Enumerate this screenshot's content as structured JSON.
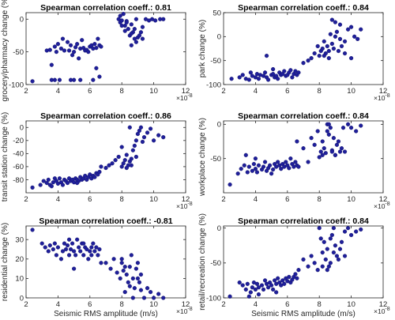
{
  "chart_data": [
    {
      "type": "scatter",
      "title": "Spearman correlation coeff.: 0.81",
      "ylabel": "grocery/pharmacy change (%)",
      "xlabel": "",
      "xlim": [
        2,
        12
      ],
      "ylim": [
        -100,
        10
      ],
      "xticks": [
        "2",
        "4",
        "6",
        "8",
        "10",
        "12"
      ],
      "yticks": [
        "-100",
        "-50",
        "0"
      ],
      "ytick_values": [
        -100,
        -50,
        0
      ],
      "x_multiplier": "×10",
      "x_multiplier_exp": "-8",
      "marker_color": "#1f1f9a",
      "x": [
        2.4,
        3.3,
        3.5,
        3.6,
        3.8,
        3.9,
        4.0,
        4.2,
        4.3,
        4.4,
        4.6,
        4.7,
        4.8,
        4.9,
        5.0,
        5.1,
        5.2,
        5.3,
        5.4,
        5.5,
        5.6,
        5.7,
        5.8,
        5.9,
        6.0,
        6.1,
        6.2,
        6.3,
        6.4,
        6.5,
        6.6,
        6.7,
        3.6,
        3.8,
        4.1,
        4.8,
        5.0,
        5.4,
        6.2,
        6.4,
        6.6,
        7.8,
        7.9,
        8.0,
        8.1,
        8.2,
        8.3,
        8.4,
        8.5,
        8.6,
        8.7,
        8.8,
        8.9,
        9.0,
        9.2,
        9.3,
        9.5,
        9.7,
        9.9,
        10.1,
        10.4,
        10.6,
        8.0,
        8.3,
        8.6,
        8.8,
        9.1,
        9.3,
        8.9,
        8.6,
        7.9,
        8.2
      ],
      "y": [
        -95,
        -48,
        -47,
        -70,
        -42,
        -50,
        -38,
        -45,
        -30,
        -48,
        -35,
        -48,
        -40,
        -55,
        -50,
        -43,
        -38,
        -60,
        -45,
        -32,
        -44,
        -48,
        -47,
        -50,
        -42,
        -40,
        -45,
        -38,
        -44,
        -30,
        -40,
        -42,
        -93,
        -93,
        -93,
        -93,
        -93,
        -93,
        -93,
        -75,
        -88,
        0,
        -5,
        -2,
        8,
        -10,
        -3,
        -15,
        -25,
        -8,
        -20,
        -30,
        0,
        -28,
        -20,
        -30,
        0,
        -2,
        0,
        -2,
        0,
        0,
        -10,
        -5,
        -22,
        -15,
        -25,
        -12,
        -35,
        -40,
        5,
        -18
      ]
    },
    {
      "type": "scatter",
      "title": "Spearman correlation coeff.: 0.84",
      "ylabel": "park change (%)",
      "xlabel": "",
      "xlim": [
        2,
        12
      ],
      "ylim": [
        -100,
        50
      ],
      "xticks": [
        "2",
        "4",
        "6",
        "8",
        "10",
        "12"
      ],
      "yticks": [
        "-100",
        "-50",
        "0",
        "50"
      ],
      "ytick_values": [
        -100,
        -50,
        0,
        50
      ],
      "x_multiplier": "×10",
      "x_multiplier_exp": "-8",
      "marker_color": "#1f1f9a",
      "x": [
        2.5,
        3.0,
        3.2,
        3.4,
        3.6,
        3.7,
        3.8,
        4.0,
        4.1,
        4.2,
        4.3,
        4.5,
        4.6,
        4.7,
        4.8,
        5.0,
        5.1,
        5.2,
        5.3,
        5.4,
        5.5,
        5.6,
        5.7,
        5.8,
        5.9,
        6.0,
        6.1,
        6.2,
        6.3,
        6.4,
        6.5,
        6.6,
        6.7,
        4.7,
        5.1,
        7.0,
        7.3,
        7.5,
        7.7,
        7.9,
        8.0,
        8.1,
        8.2,
        8.3,
        8.4,
        8.5,
        8.6,
        8.7,
        8.8,
        8.9,
        9.0,
        9.2,
        9.3,
        9.4,
        9.6,
        9.8,
        10.0,
        10.2,
        10.4,
        10.6,
        8.8,
        9.0,
        9.1,
        9.6,
        10.0,
        8.6,
        8.3,
        9.3
      ],
      "y": [
        -88,
        -85,
        -80,
        -88,
        -90,
        -75,
        -82,
        -85,
        -78,
        -88,
        -80,
        -82,
        -75,
        -85,
        -90,
        -80,
        -78,
        -85,
        -82,
        -88,
        -75,
        -80,
        -78,
        -72,
        -82,
        -80,
        -75,
        -70,
        -85,
        -78,
        -72,
        -80,
        -75,
        -40,
        -68,
        -55,
        -50,
        -45,
        -35,
        -20,
        -40,
        -30,
        -25,
        -10,
        -35,
        -20,
        -30,
        5,
        -15,
        -25,
        0,
        -30,
        -5,
        -20,
        -10,
        15,
        20,
        0,
        -5,
        15,
        35,
        30,
        10,
        -35,
        -45,
        -45,
        -40,
        25
      ]
    },
    {
      "type": "scatter",
      "title": "Spearman correlation coeff.: 0.86",
      "ylabel": "transit station change (%)",
      "xlabel": "",
      "xlim": [
        2,
        12
      ],
      "ylim": [
        -100,
        10
      ],
      "xticks": [
        "2",
        "4",
        "6",
        "8",
        "10",
        "12"
      ],
      "yticks": [
        "-80",
        "-60",
        "-40",
        "-20",
        "0"
      ],
      "ytick_values": [
        -80,
        -60,
        -40,
        -20,
        0
      ],
      "x_multiplier": "×10",
      "x_multiplier_exp": "-8",
      "marker_color": "#1f1f9a",
      "x": [
        2.4,
        2.9,
        3.1,
        3.3,
        3.4,
        3.5,
        3.7,
        3.8,
        3.9,
        4.0,
        4.1,
        4.2,
        4.4,
        4.5,
        4.6,
        4.7,
        4.8,
        4.9,
        5.0,
        5.1,
        5.2,
        5.3,
        5.4,
        5.5,
        5.6,
        5.7,
        5.8,
        5.9,
        6.0,
        6.1,
        6.2,
        6.3,
        6.4,
        6.5,
        6.6,
        6.7,
        3.6,
        4.3,
        5.2,
        7.0,
        7.2,
        7.4,
        7.6,
        7.8,
        8.0,
        8.1,
        8.2,
        8.3,
        8.4,
        8.5,
        8.6,
        8.7,
        8.8,
        8.9,
        9.0,
        9.1,
        9.2,
        9.4,
        9.6,
        9.8,
        10.0,
        10.3,
        10.6,
        8.3,
        8.6,
        8.9,
        8.0,
        8.5,
        9.3
      ],
      "y": [
        -92,
        -88,
        -82,
        -85,
        -80,
        -88,
        -84,
        -78,
        -82,
        -86,
        -78,
        -84,
        -80,
        -82,
        -85,
        -78,
        -82,
        -80,
        -84,
        -78,
        -80,
        -82,
        -76,
        -80,
        -78,
        -74,
        -80,
        -76,
        -72,
        -78,
        -74,
        -76,
        -70,
        -72,
        -68,
        -60,
        -90,
        -88,
        -85,
        -62,
        -58,
        -55,
        -50,
        -45,
        -60,
        -55,
        -50,
        -42,
        -58,
        -52,
        -48,
        -35,
        -28,
        -20,
        -10,
        -5,
        0,
        -15,
        -8,
        -2,
        -20,
        -12,
        -15,
        -62,
        -58,
        -45,
        -30,
        0,
        -22
      ]
    },
    {
      "type": "scatter",
      "title": "Spearman correlation coeff.: 0.84",
      "ylabel": "workplace change (%)",
      "xlabel": "",
      "xlim": [
        2,
        12
      ],
      "ylim": [
        -100,
        5
      ],
      "xticks": [
        "2",
        "4",
        "6",
        "8",
        "10",
        "12"
      ],
      "yticks": [
        "-50",
        "0"
      ],
      "ytick_values": [
        -50,
        0
      ],
      "x_multiplier": "×10",
      "x_multiplier_exp": "-8",
      "marker_color": "#1f1f9a",
      "x": [
        2.4,
        2.9,
        3.1,
        3.3,
        3.5,
        3.6,
        3.8,
        3.9,
        4.0,
        4.1,
        4.2,
        4.4,
        4.5,
        4.6,
        4.7,
        4.8,
        4.9,
        5.0,
        5.1,
        5.2,
        5.3,
        5.4,
        5.5,
        5.6,
        5.7,
        5.8,
        5.9,
        6.0,
        6.1,
        6.2,
        6.3,
        6.4,
        6.5,
        6.6,
        6.7,
        3.4,
        4.0,
        6.6,
        7.0,
        7.3,
        7.5,
        7.7,
        7.9,
        8.0,
        8.1,
        8.2,
        8.3,
        8.4,
        8.5,
        8.6,
        8.7,
        8.8,
        8.9,
        9.0,
        9.1,
        9.2,
        9.4,
        9.6,
        9.8,
        10.0,
        10.3,
        10.6,
        8.2,
        8.5,
        8.8,
        9.0,
        9.3,
        8.6,
        9.5
      ],
      "y": [
        -88,
        -72,
        -65,
        -60,
        -70,
        -62,
        -68,
        -58,
        -65,
        -70,
        -60,
        -66,
        -62,
        -55,
        -68,
        -64,
        -60,
        -72,
        -66,
        -58,
        -62,
        -55,
        -60,
        -65,
        -58,
        -62,
        -55,
        -60,
        -64,
        -50,
        -58,
        -62,
        -55,
        -60,
        -62,
        -45,
        -50,
        -25,
        -35,
        -55,
        -20,
        -30,
        -10,
        -48,
        -40,
        -45,
        -35,
        -42,
        0,
        -15,
        -5,
        -38,
        -20,
        -45,
        -30,
        -25,
        -35,
        -40,
        0,
        -5,
        -10,
        -2,
        -25,
        -10,
        -40,
        -45,
        -40,
        0,
        -5
      ]
    },
    {
      "type": "scatter",
      "title": "Spearman correlation coeff.: -0.81",
      "ylabel": "residential change (%)",
      "xlabel": "Seismic RMS amplitude (m/s)",
      "xlim": [
        2,
        12
      ],
      "ylim": [
        0,
        37
      ],
      "xticks": [
        "2",
        "4",
        "6",
        "8",
        "10",
        "12"
      ],
      "yticks": [
        "0",
        "10",
        "20",
        "30"
      ],
      "ytick_values": [
        0,
        10,
        20,
        30
      ],
      "x_multiplier": "×10",
      "x_multiplier_exp": "-8",
      "marker_color": "#1f1f9a",
      "x": [
        2.4,
        3.0,
        3.2,
        3.4,
        3.5,
        3.7,
        3.8,
        3.9,
        4.0,
        4.2,
        4.3,
        4.4,
        4.5,
        4.6,
        4.7,
        4.8,
        4.9,
        5.0,
        5.1,
        5.2,
        5.3,
        5.4,
        5.5,
        5.6,
        5.7,
        5.8,
        5.9,
        6.0,
        6.1,
        6.2,
        6.3,
        6.4,
        6.5,
        6.6,
        6.7,
        4.7,
        5.0,
        5.6,
        6.1,
        7.0,
        7.3,
        7.5,
        7.7,
        7.9,
        8.0,
        8.1,
        8.2,
        8.3,
        8.4,
        8.5,
        8.6,
        8.7,
        8.8,
        8.9,
        9.0,
        9.1,
        9.2,
        9.4,
        9.6,
        9.8,
        10.0,
        10.3,
        10.6,
        8.2,
        8.5,
        9.2,
        8.7,
        8.0,
        9.0
      ],
      "y": [
        35,
        28,
        26,
        24,
        27,
        25,
        28,
        22,
        26,
        20,
        24,
        28,
        25,
        27,
        22,
        25,
        28,
        24,
        22,
        30,
        26,
        24,
        28,
        22,
        26,
        25,
        20,
        24,
        26,
        28,
        24,
        26,
        22,
        25,
        18,
        30,
        15,
        28,
        22,
        18,
        15,
        20,
        13,
        10,
        18,
        14,
        16,
        12,
        8,
        16,
        22,
        10,
        5,
        15,
        18,
        8,
        12,
        0,
        5,
        3,
        0,
        2,
        0,
        3,
        6,
        4,
        0,
        20,
        10
      ]
    },
    {
      "type": "scatter",
      "title": "Spearman correlation coeff.: 0.84",
      "ylabel": "retail/recreation change (%)",
      "xlabel": "Seismic RMS amplitude (m/s)",
      "xlim": [
        2,
        12
      ],
      "ylim": [
        -100,
        3
      ],
      "xticks": [
        "2",
        "4",
        "6",
        "8",
        "10",
        "12"
      ],
      "yticks": [
        "-100",
        "-50",
        "0"
      ],
      "ytick_values": [
        -100,
        -50,
        0
      ],
      "x_multiplier": "×10",
      "x_multiplier_exp": "-8",
      "marker_color": "#1f1f9a",
      "x": [
        2.4,
        3.0,
        3.2,
        3.4,
        3.5,
        3.7,
        3.8,
        3.9,
        4.0,
        4.1,
        4.2,
        4.4,
        4.5,
        4.6,
        4.7,
        4.8,
        4.9,
        5.0,
        5.1,
        5.2,
        5.3,
        5.4,
        5.5,
        5.6,
        5.7,
        5.8,
        5.9,
        6.0,
        6.1,
        6.2,
        6.3,
        6.4,
        6.5,
        6.6,
        6.7,
        3.6,
        4.2,
        5.3,
        7.0,
        7.3,
        7.5,
        7.7,
        7.9,
        8.0,
        8.1,
        8.2,
        8.3,
        8.4,
        8.5,
        8.6,
        8.7,
        8.8,
        8.9,
        9.0,
        9.1,
        9.2,
        9.4,
        9.6,
        9.8,
        10.0,
        10.3,
        10.6,
        8.2,
        8.5,
        8.9,
        9.3,
        8.7,
        9.6
      ],
      "y": [
        -98,
        -78,
        -82,
        -88,
        -80,
        -92,
        -85,
        -78,
        -88,
        -80,
        -85,
        -82,
        -88,
        -75,
        -80,
        -85,
        -78,
        -82,
        -88,
        -75,
        -80,
        -72,
        -78,
        -82,
        -75,
        -80,
        -72,
        -76,
        -70,
        -78,
        -74,
        -70,
        -66,
        -72,
        -60,
        -98,
        -95,
        -92,
        -45,
        -55,
        -40,
        -50,
        -60,
        0,
        -15,
        -35,
        -20,
        -45,
        -30,
        -55,
        -50,
        -10,
        0,
        -25,
        -40,
        -45,
        -20,
        -5,
        0,
        -10,
        -5,
        -2,
        -55,
        -60,
        -35,
        -30,
        -15,
        -40
      ]
    }
  ]
}
